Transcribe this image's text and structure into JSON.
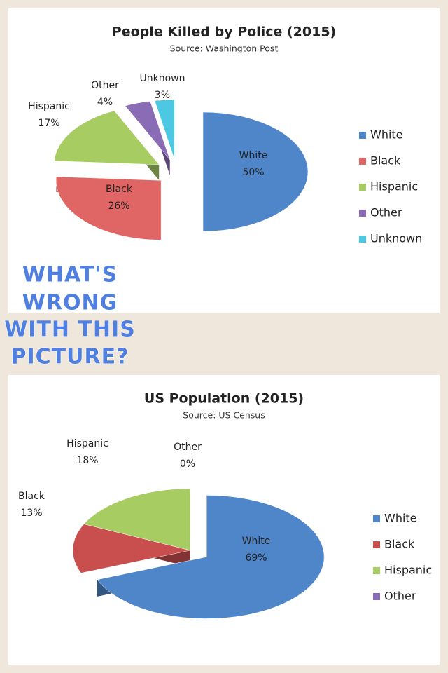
{
  "chart_data": [
    {
      "type": "pie",
      "title": "People Killed by Police (2015)",
      "subtitle": "Source: Washington Post",
      "categories": [
        "White",
        "Black",
        "Hispanic",
        "Other",
        "Unknown"
      ],
      "values": [
        50,
        26,
        17,
        4,
        3
      ],
      "value_labels": [
        "50%",
        "26%",
        "17%",
        "4%",
        "3%"
      ],
      "colors": [
        "#4f86c9",
        "#e06666",
        "#a6cc62",
        "#8a6bb5",
        "#4cc8e3"
      ],
      "legend": "right"
    },
    {
      "type": "pie",
      "title": "US Population (2015)",
      "subtitle": "Source: US Census",
      "categories": [
        "White",
        "Black",
        "Hispanic",
        "Other"
      ],
      "values": [
        69,
        13,
        18,
        0
      ],
      "value_labels": [
        "69%",
        "13%",
        "18%",
        "0%"
      ],
      "colors": [
        "#4f86c9",
        "#c94f4f",
        "#a6cc62",
        "#8a6bb5"
      ],
      "legend": "right"
    }
  ],
  "caption": [
    "WHAT'S",
    "WRONG",
    "WITH THIS",
    "PICTURE?"
  ]
}
